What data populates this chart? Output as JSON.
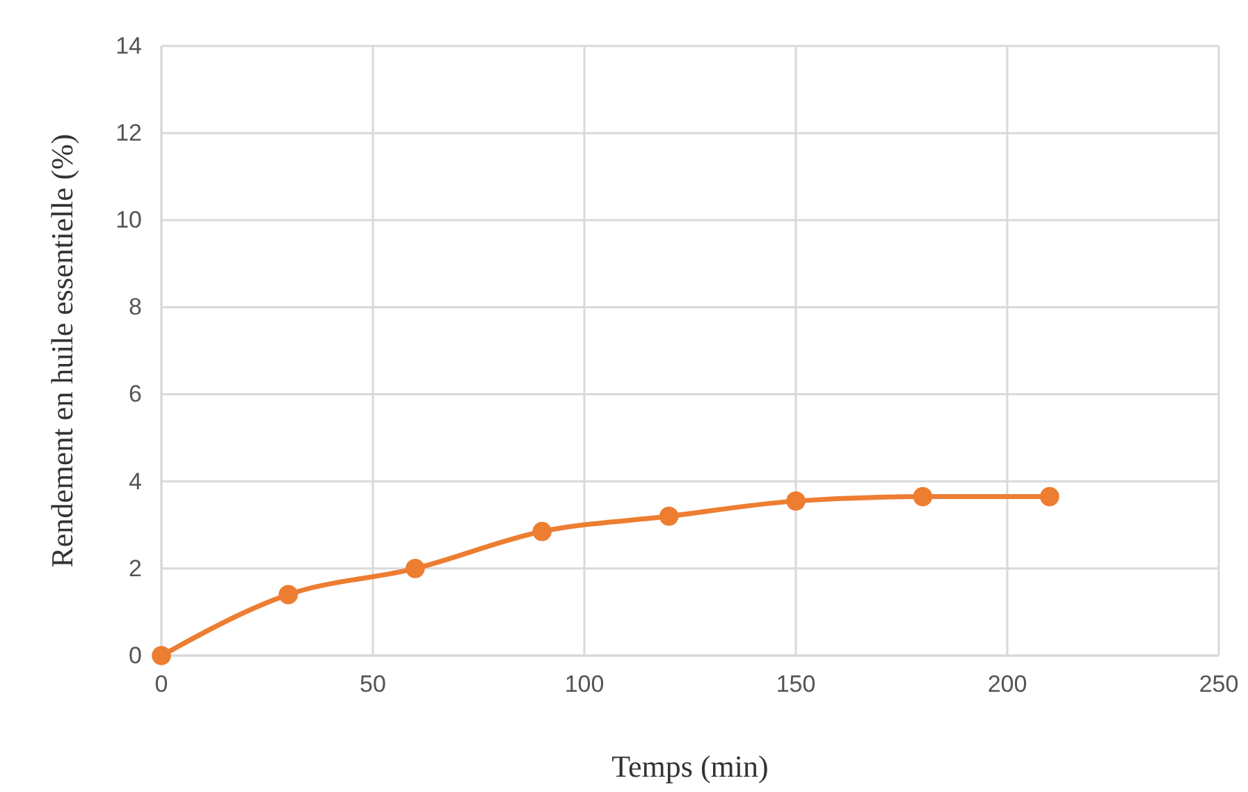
{
  "chart_data": {
    "type": "line",
    "xlabel": "Temps (min)",
    "ylabel": "Rendement en huile essentielle (%)",
    "x": [
      0,
      30,
      60,
      90,
      120,
      150,
      180,
      210
    ],
    "series": [
      {
        "color": "#ed7d31",
        "values": [
          0,
          1.4,
          2.0,
          2.85,
          3.2,
          3.55,
          3.65,
          3.65
        ]
      }
    ],
    "xlim": [
      0,
      250
    ],
    "xticks": [
      0,
      50,
      100,
      150,
      200,
      250
    ],
    "ylim": [
      0,
      14
    ],
    "yticks": [
      0,
      2,
      4,
      6,
      8,
      10,
      12,
      14
    ],
    "grid": true,
    "marker": "circle",
    "line_style": "solid"
  }
}
